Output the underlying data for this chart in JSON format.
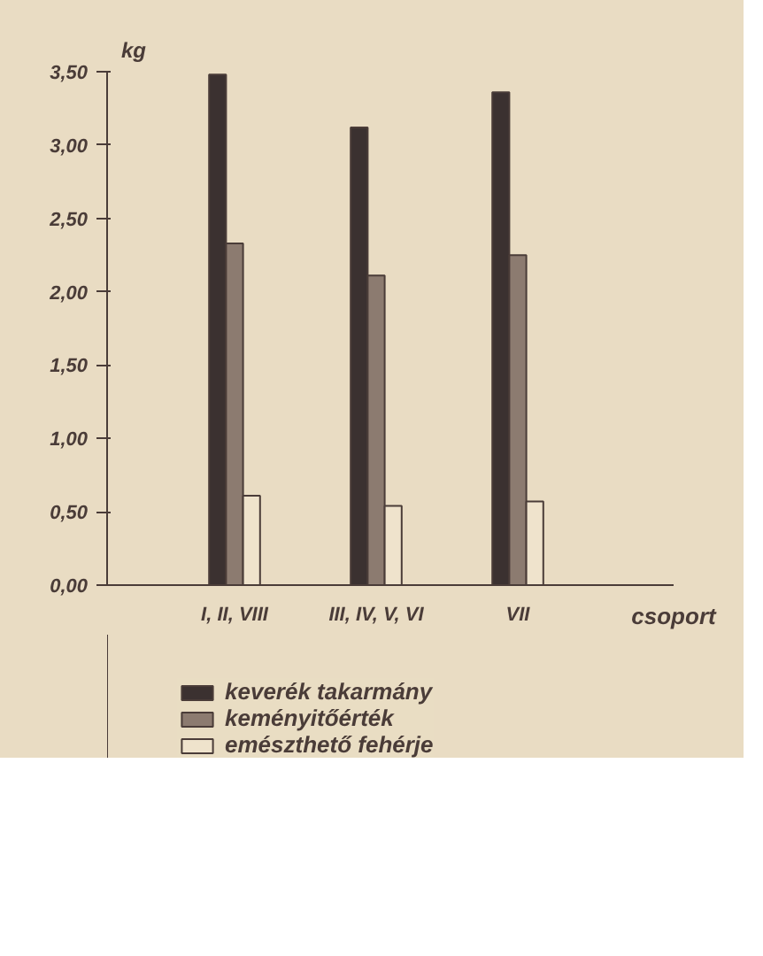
{
  "chart_data": {
    "type": "bar",
    "ylabel": "kg",
    "xlabel": "csoport",
    "categories": [
      "I, II, VIII",
      "III, IV, V, VI",
      "VII"
    ],
    "series": [
      {
        "name": "keverék takarmány",
        "color": "#3b3130",
        "values": [
          3.48,
          3.12,
          3.36
        ]
      },
      {
        "name": "keményitőérték",
        "color": "#8c7b70",
        "values": [
          2.33,
          2.11,
          2.25
        ]
      },
      {
        "name": "emészthető fehérje",
        "color": "#efe3cc",
        "values": [
          0.61,
          0.54,
          0.57
        ]
      }
    ],
    "ylim": [
      0,
      3.5
    ],
    "yticks": [
      {
        "value": 0,
        "label": "0,00"
      },
      {
        "value": 0.5,
        "label": "0,50"
      },
      {
        "value": 1,
        "label": "1,00"
      },
      {
        "value": 1.5,
        "label": "1,50"
      },
      {
        "value": 2,
        "label": "2,00"
      },
      {
        "value": 2.5,
        "label": "2,50"
      },
      {
        "value": 3,
        "label": "3,00"
      },
      {
        "value": 3.5,
        "label": "3,50"
      }
    ],
    "grid": false,
    "legend": "bottom left"
  }
}
